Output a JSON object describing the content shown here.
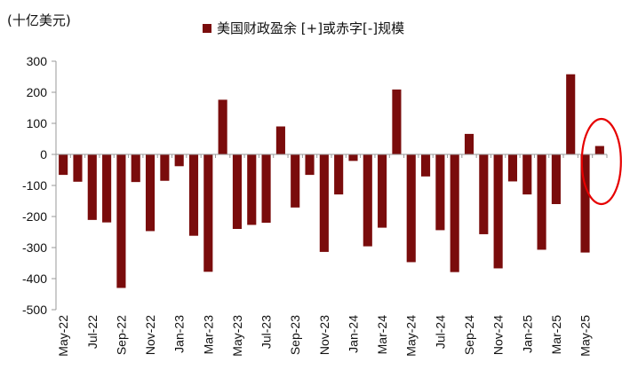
{
  "chart_data": {
    "type": "bar",
    "unit_label": "(十亿美元)",
    "series": [
      {
        "name": "美国财政盈余 [+]或赤字[-]规模",
        "color": "#7a0c0c",
        "values": [
          -66,
          -88,
          -211,
          -219,
          -430,
          -89,
          -247,
          -85,
          -38,
          -262,
          -378,
          176,
          -240,
          -227,
          -220,
          90,
          -171,
          -66,
          -314,
          -129,
          -21,
          -296,
          -236,
          209,
          -347,
          -71,
          -244,
          -379,
          66,
          -257,
          -367,
          -87,
          -129,
          -307,
          -160,
          258,
          -316,
          27
        ]
      }
    ],
    "categories": [
      "May-22",
      "Jun-22",
      "Jul-22",
      "Aug-22",
      "Sep-22",
      "Oct-22",
      "Nov-22",
      "Dec-22",
      "Jan-23",
      "Feb-23",
      "Mar-23",
      "Apr-23",
      "May-23",
      "Jun-23",
      "Jul-23",
      "Aug-23",
      "Sep-23",
      "Oct-23",
      "Nov-23",
      "Dec-23",
      "Jan-24",
      "Feb-24",
      "Mar-24",
      "Apr-24",
      "May-24",
      "Jun-24",
      "Jul-24",
      "Aug-24",
      "Sep-24",
      "Oct-24",
      "Nov-24",
      "Dec-24",
      "Jan-25",
      "Feb-25",
      "Mar-25",
      "Apr-25",
      "May-25",
      "Jun-25"
    ],
    "x_tick_labels": [
      "May-22",
      "Jul-22",
      "Sep-22",
      "Nov-22",
      "Jan-23",
      "Mar-23",
      "May-23",
      "Jul-23",
      "Sep-23",
      "Nov-23",
      "Jan-24",
      "Mar-24",
      "May-24",
      "Jul-24",
      "Sep-24",
      "Nov-24",
      "Jan-25",
      "Mar-25",
      "May-25"
    ],
    "y_ticks": [
      300,
      200,
      100,
      0,
      -100,
      -200,
      -300,
      -400,
      -500
    ],
    "ylim": [
      -500,
      300
    ],
    "grid": false,
    "legend": "top-center",
    "annotation": {
      "shape": "ellipse",
      "color": "#e60000",
      "highlight_category": "Jun-25"
    }
  }
}
